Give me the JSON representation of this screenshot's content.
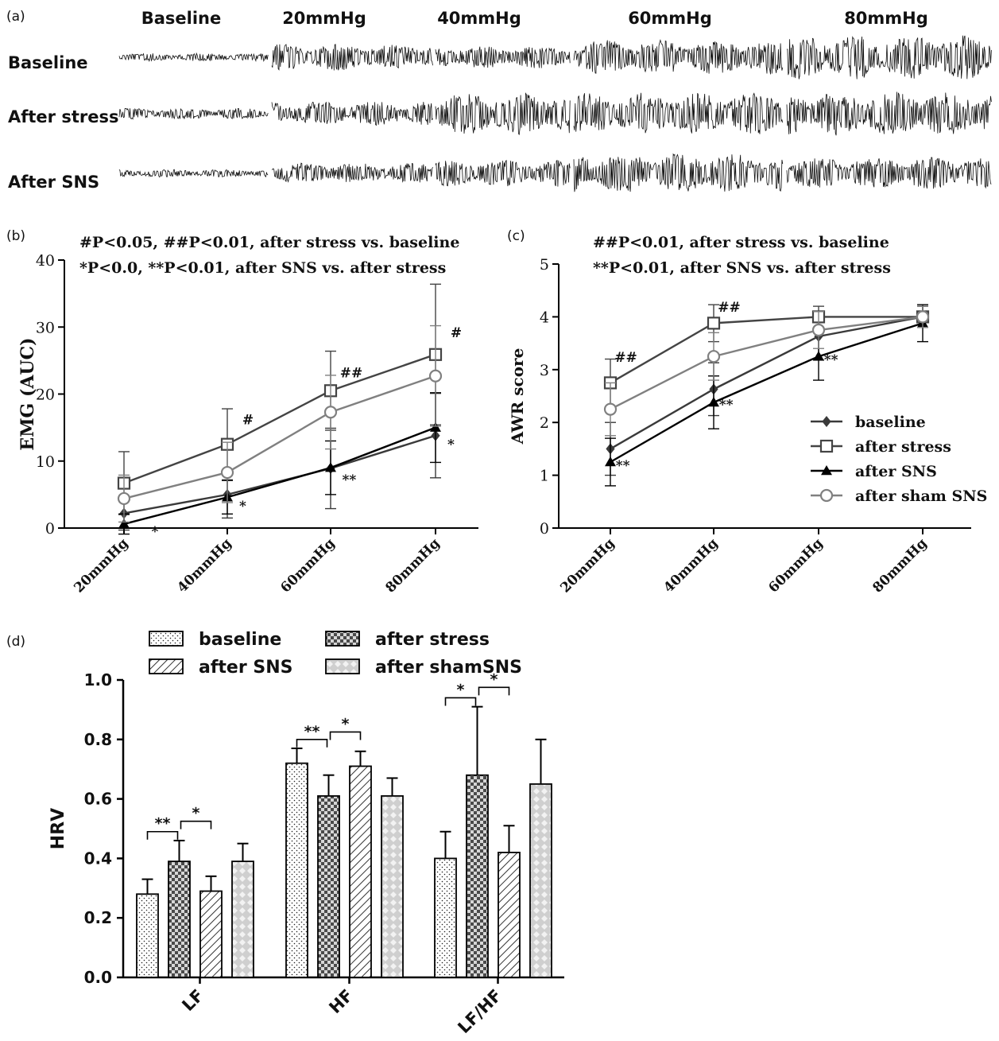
{
  "panel_a": {
    "panel_label": "(a)",
    "column_labels": [
      "Baseline",
      "20mmHg",
      "40mmHg",
      "60mmHg",
      "80mmHg"
    ],
    "row_labels": [
      "Baseline",
      "After stress",
      "After SNS"
    ],
    "trace_amplitude": [
      [
        0.08,
        0.55,
        0.45,
        0.75,
        1.0
      ],
      [
        0.15,
        0.5,
        0.95,
        0.95,
        1.0
      ],
      [
        0.08,
        0.4,
        0.55,
        0.9,
        0.7
      ]
    ]
  },
  "panel_b": {
    "panel_label": "(b)",
    "note_1": "#P<0.05, ##P<0.01, after stress vs. baseline",
    "note_2": "*P<0.0, **P<0.01, after SNS vs. after stress"
  },
  "panel_c": {
    "panel_label": "(c)",
    "note_1": "##P<0.01, after stress vs. baseline",
    "note_2": "**P<0.01, after SNS vs. after stress"
  },
  "panel_d": {
    "panel_label": "(d)"
  },
  "colors": {
    "baseline": "#3a3a3a",
    "after_stress": "#444444",
    "after_SNS": "#000000",
    "after_sham_SNS": "#808080"
  },
  "chart_data": [
    {
      "type": "line",
      "panel": "b",
      "categories": [
        "20mmHg",
        "40mmHg",
        "60mmHg",
        "80mmHg"
      ],
      "ylabel": "EMG (AUC)",
      "ylim": [
        0,
        40
      ],
      "yticks": [
        0,
        10,
        20,
        30,
        40
      ],
      "series": [
        {
          "name": "baseline",
          "marker": "diamond",
          "values": [
            2.2,
            5.0,
            8.9,
            13.8
          ],
          "err": [
            2.5,
            3.5,
            6.0,
            6.3
          ]
        },
        {
          "name": "after stress",
          "marker": "square",
          "values": [
            6.7,
            12.5,
            20.5,
            25.9
          ],
          "err": [
            4.7,
            5.3,
            5.9,
            10.5
          ]
        },
        {
          "name": "after SNS",
          "marker": "triangle",
          "values": [
            0.6,
            4.6,
            9.0,
            15.0
          ],
          "err": [
            1.5,
            2.5,
            4.0,
            5.2
          ]
        },
        {
          "name": "after sham SNS",
          "marker": "circle",
          "values": [
            4.4,
            8.3,
            17.3,
            22.7
          ],
          "err": [
            3.5,
            4.5,
            5.5,
            7.5
          ]
        }
      ],
      "annotations": [
        {
          "text": "*",
          "x": "20mmHg",
          "y": -1.2,
          "dx": 0.3
        },
        {
          "text": "#",
          "x": "40mmHg",
          "y": 15.5,
          "dx": 0.2
        },
        {
          "text": "*",
          "x": "40mmHg",
          "y": 2.6,
          "dx": 0.15
        },
        {
          "text": "##",
          "x": "60mmHg",
          "y": 22.5,
          "dx": 0.2
        },
        {
          "text": "**",
          "x": "60mmHg",
          "y": 6.5,
          "dx": 0.18
        },
        {
          "text": "#",
          "x": "80mmHg",
          "y": 28.5,
          "dx": 0.2
        },
        {
          "text": "*",
          "x": "80mmHg",
          "y": 11.8,
          "dx": 0.15
        }
      ]
    },
    {
      "type": "line",
      "panel": "c",
      "categories": [
        "20mmHg",
        "40mmHg",
        "60mmHg",
        "80mmHg"
      ],
      "ylabel": "AWR score",
      "ylim": [
        0,
        5
      ],
      "yticks": [
        0,
        1,
        2,
        3,
        4,
        5
      ],
      "legend": "bottom-right",
      "series": [
        {
          "name": "baseline",
          "marker": "diamond",
          "values": [
            1.5,
            2.63,
            3.63,
            4.0
          ],
          "err": [
            0.5,
            0.5,
            0.45,
            0.2
          ]
        },
        {
          "name": "after stress",
          "marker": "square",
          "values": [
            2.75,
            3.88,
            4.0,
            4.0
          ],
          "err": [
            0.45,
            0.35,
            0.2,
            0.2
          ]
        },
        {
          "name": "after SNS",
          "marker": "triangle",
          "values": [
            1.25,
            2.38,
            3.25,
            3.88
          ],
          "err": [
            0.45,
            0.5,
            0.45,
            0.35
          ]
        },
        {
          "name": "after sham SNS",
          "marker": "circle",
          "values": [
            2.25,
            3.25,
            3.75,
            4.0
          ],
          "err": [
            0.5,
            0.45,
            0.35,
            0.2
          ]
        }
      ],
      "annotations": [
        {
          "text": "##",
          "x": "20mmHg",
          "y": 3.15,
          "dx": 0.15
        },
        {
          "text": "**",
          "x": "20mmHg",
          "y": 1.1,
          "dx": 0.12
        },
        {
          "text": "##",
          "x": "40mmHg",
          "y": 4.1,
          "dx": 0.15
        },
        {
          "text": "**",
          "x": "40mmHg",
          "y": 2.25,
          "dx": 0.12
        },
        {
          "text": "**",
          "x": "60mmHg",
          "y": 3.1,
          "dx": 0.12
        }
      ]
    },
    {
      "type": "bar",
      "panel": "d",
      "categories": [
        "LF",
        "HF",
        "LF/HF"
      ],
      "ylabel": "HRV",
      "ylim": [
        0,
        1.0
      ],
      "yticks": [
        "0.0",
        "0.2",
        "0.4",
        "0.6",
        "0.8",
        "1.0"
      ],
      "legend_labels": [
        "baseline",
        "after stress",
        "after SNS",
        "after shamSNS"
      ],
      "series": [
        {
          "name": "baseline",
          "pattern": "dots",
          "values": [
            0.28,
            0.72,
            0.4
          ],
          "err": [
            0.05,
            0.05,
            0.09
          ]
        },
        {
          "name": "after stress",
          "pattern": "checker",
          "values": [
            0.39,
            0.61,
            0.68
          ],
          "err": [
            0.07,
            0.07,
            0.23
          ]
        },
        {
          "name": "after SNS",
          "pattern": "hatch",
          "values": [
            0.29,
            0.71,
            0.42
          ],
          "err": [
            0.05,
            0.05,
            0.09
          ]
        },
        {
          "name": "after shamSNS",
          "pattern": "diamond-grid",
          "values": [
            0.39,
            0.61,
            0.65
          ],
          "err": [
            0.06,
            0.06,
            0.15
          ]
        }
      ],
      "significance": [
        {
          "category": "LF",
          "from": 0,
          "to": 1,
          "label": "**"
        },
        {
          "category": "LF",
          "from": 1,
          "to": 2,
          "label": "*"
        },
        {
          "category": "HF",
          "from": 0,
          "to": 1,
          "label": "**"
        },
        {
          "category": "HF",
          "from": 1,
          "to": 2,
          "label": "*"
        },
        {
          "category": "LF/HF",
          "from": 0,
          "to": 1,
          "label": "*"
        },
        {
          "category": "LF/HF",
          "from": 1,
          "to": 2,
          "label": "*"
        }
      ]
    }
  ]
}
